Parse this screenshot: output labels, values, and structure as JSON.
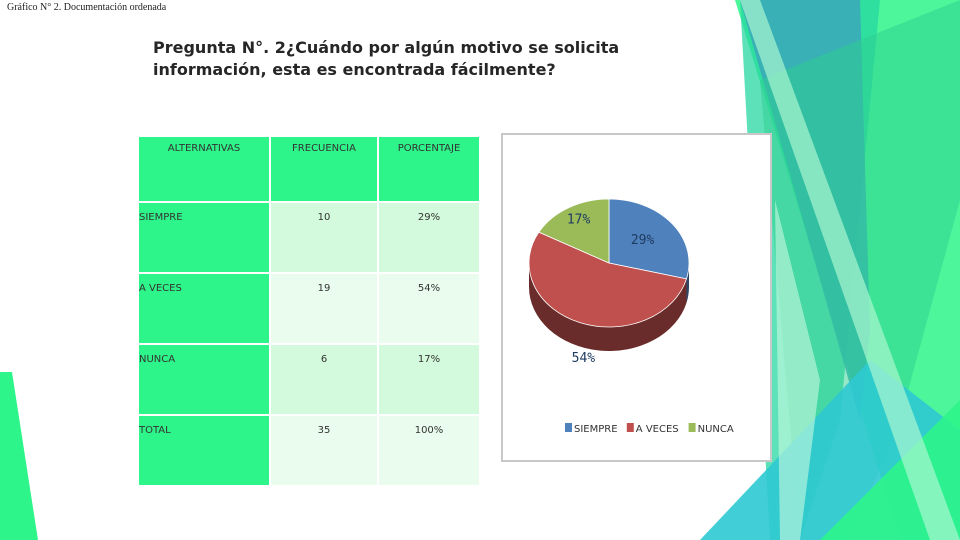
{
  "caption": "Gráfico N° 2. Documentación ordenada",
  "question": {
    "line1": "Pregunta N°. 2¿Cuándo por algún motivo se solicita",
    "line2": "información, esta es encontrada fácilmente?"
  },
  "table": {
    "headers": [
      "ALTERNATIVAS",
      "FRECUENCIA",
      "PORCENTAJE"
    ],
    "rows": [
      [
        "SIEMPRE",
        "10",
        "29%"
      ],
      [
        "A VECES",
        "19",
        "54%"
      ],
      [
        "NUNCA",
        "6",
        "17%"
      ],
      [
        "TOTAL",
        "35",
        "100%"
      ]
    ]
  },
  "chart_data": {
    "type": "pie",
    "title": "",
    "categories": [
      "SIEMPRE",
      "A VECES",
      "NUNCA"
    ],
    "values": [
      29,
      54,
      17
    ],
    "labels": [
      "29%",
      "54%",
      "17%"
    ],
    "colors": [
      "#4f81bd",
      "#c0504d",
      "#9bbb59"
    ],
    "legend_position": "bottom"
  },
  "theme": {
    "accent_green": "#2ef589",
    "accent_teal": "#1fb5c7"
  }
}
